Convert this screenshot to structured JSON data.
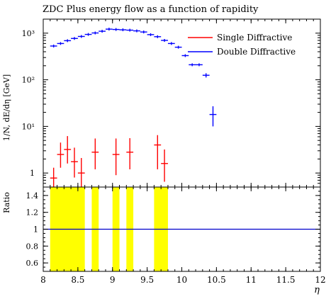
{
  "chart_data": {
    "type": "line",
    "title": "ZDC Plus energy flow as a function of rapidity",
    "main_panel": {
      "ylabel": "1/N, dE/dη [GeV]",
      "yscale": "log",
      "ylim": [
        0.5,
        2000
      ],
      "y_ticks": [
        {
          "value": 1,
          "label": "1"
        },
        {
          "value": 10,
          "label": "10¹"
        },
        {
          "value": 100,
          "label": "10²"
        },
        {
          "value": 1000,
          "label": "10³"
        }
      ],
      "series": [
        {
          "name": "Single Diffractive",
          "color": "#ff0000",
          "points": [
            {
              "x": 8.15,
              "y": 0.78,
              "ylo": 0.45,
              "yhi": 1.3
            },
            {
              "x": 8.25,
              "y": 2.5,
              "ylo": 1.3,
              "yhi": 4.5
            },
            {
              "x": 8.35,
              "y": 3.2,
              "ylo": 1.6,
              "yhi": 6.2
            },
            {
              "x": 8.45,
              "y": 1.75,
              "ylo": 0.8,
              "yhi": 3.5
            },
            {
              "x": 8.55,
              "y": 1.0,
              "ylo": 0.5,
              "yhi": 2.1
            },
            {
              "x": 8.75,
              "y": 2.8,
              "ylo": 1.2,
              "yhi": 5.5
            },
            {
              "x": 9.05,
              "y": 2.5,
              "ylo": 0.9,
              "yhi": 5.5
            },
            {
              "x": 9.25,
              "y": 2.8,
              "ylo": 1.2,
              "yhi": 5.6
            },
            {
              "x": 9.65,
              "y": 4.0,
              "ylo": 1.2,
              "yhi": 6.5
            },
            {
              "x": 9.75,
              "y": 1.6,
              "ylo": 0.65,
              "yhi": 3.2
            }
          ]
        },
        {
          "name": "Double Diffractive",
          "color": "#0000ff",
          "points": [
            {
              "x": 8.15,
              "y": 530
            },
            {
              "x": 8.25,
              "y": 600
            },
            {
              "x": 8.35,
              "y": 690
            },
            {
              "x": 8.45,
              "y": 770
            },
            {
              "x": 8.55,
              "y": 850
            },
            {
              "x": 8.65,
              "y": 940
            },
            {
              "x": 8.75,
              "y": 1010
            },
            {
              "x": 8.85,
              "y": 1100
            },
            {
              "x": 8.95,
              "y": 1220
            },
            {
              "x": 9.05,
              "y": 1200
            },
            {
              "x": 9.15,
              "y": 1180
            },
            {
              "x": 9.25,
              "y": 1160
            },
            {
              "x": 9.35,
              "y": 1120
            },
            {
              "x": 9.45,
              "y": 1060
            },
            {
              "x": 9.55,
              "y": 930
            },
            {
              "x": 9.65,
              "y": 840
            },
            {
              "x": 9.75,
              "y": 700
            },
            {
              "x": 9.85,
              "y": 600
            },
            {
              "x": 9.95,
              "y": 500
            },
            {
              "x": 10.05,
              "y": 330
            },
            {
              "x": 10.15,
              "y": 210
            },
            {
              "x": 10.25,
              "y": 210
            },
            {
              "x": 10.35,
              "y": 125,
              "ylo": 112,
              "yhi": 138
            },
            {
              "x": 10.45,
              "y": 18,
              "ylo": 10,
              "yhi": 27
            }
          ]
        }
      ],
      "legend": {
        "position": "top-right",
        "entries": [
          "Single Diffractive",
          "Double Diffractive"
        ]
      }
    },
    "ratio_panel": {
      "ylabel": "Ratio",
      "ylim": [
        0.5,
        1.5
      ],
      "y_ticks": [
        "0.6",
        "0.8",
        "1",
        "1.2",
        "1.4"
      ],
      "reference_line": 1,
      "uncertainty_band_color": "#ffff00",
      "uncertainty_bands": [
        {
          "x0": 8.1,
          "x1": 8.6
        },
        {
          "x0": 8.7,
          "x1": 8.8
        },
        {
          "x0": 9.0,
          "x1": 9.1
        },
        {
          "x0": 9.2,
          "x1": 9.3
        },
        {
          "x0": 9.6,
          "x1": 9.8
        }
      ]
    },
    "xlabel": "η",
    "xlim": [
      8,
      12
    ],
    "x_ticks": [
      "8",
      "8.5",
      "9",
      "9.5",
      "10",
      "10.5",
      "11",
      "11.5",
      "12"
    ]
  }
}
